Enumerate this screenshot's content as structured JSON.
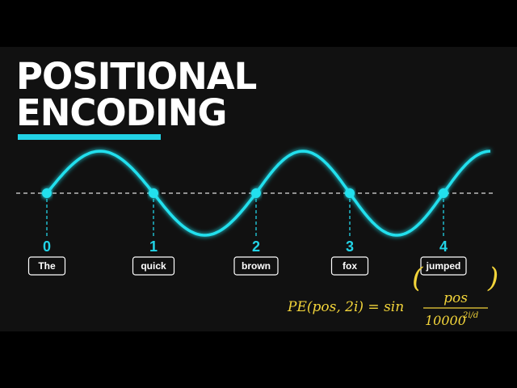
{
  "title": {
    "line1": "POSITIONAL",
    "line2": "ENCODING"
  },
  "tokens": [
    {
      "position": "0",
      "word": "The"
    },
    {
      "position": "1",
      "word": "quick"
    },
    {
      "position": "2",
      "word": "brown"
    },
    {
      "position": "3",
      "word": "fox"
    },
    {
      "position": "4",
      "word": "jumped"
    }
  ],
  "formula": {
    "lhs": "PE(pos, 2i) = sin",
    "numerator": "pos",
    "denominator": "10000",
    "exponent": "2i/d"
  }
}
